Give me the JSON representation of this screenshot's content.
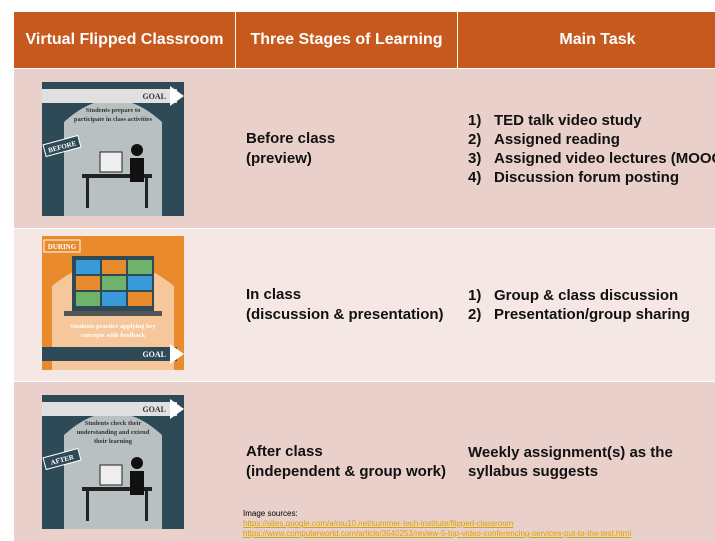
{
  "table": {
    "headers": [
      "Virtual Flipped Classroom",
      "Three Stages of Learning",
      "Main Task"
    ],
    "rows": [
      {
        "illustration": {
          "tag": "BEFORE",
          "goal": "GOAL",
          "caption": [
            "Students prepare to",
            "participate in class activities"
          ]
        },
        "stage": [
          "Before class",
          "(preview)"
        ],
        "tasks": [
          {
            "num": "1)",
            "text": "TED talk video study"
          },
          {
            "num": "2)",
            "text": "Assigned reading"
          },
          {
            "num": "3)",
            "text": "Assigned video lectures (MOOCs)"
          },
          {
            "num": "4)",
            "text": "Discussion forum posting"
          }
        ]
      },
      {
        "illustration": {
          "tag": "DURING",
          "goal": "GOAL",
          "caption": [
            "Students practice applying key",
            "concepts with feedback"
          ]
        },
        "stage": [
          "In class",
          "(discussion & presentation)"
        ],
        "tasks": [
          {
            "num": "1)",
            "text": "Group & class discussion"
          },
          {
            "num": "2)",
            "text": "Presentation/group sharing"
          }
        ]
      },
      {
        "illustration": {
          "tag": "AFTER",
          "goal": "GOAL",
          "caption": [
            "Students check their",
            "understanding and extend",
            "their learning"
          ]
        },
        "stage": [
          "After class",
          "(independent  & group work)"
        ],
        "tasks": [
          {
            "text": "Weekly assignment(s) as the syllabus suggests"
          }
        ]
      }
    ],
    "sources": {
      "label": "Image sources:",
      "links": [
        "https://sites.google.com/a/rsu10.net/summer-tech-institute/flipped-classroom",
        "https://www.computerworld.com/article/3540253/review-5-top-video-conferencing-services-put-to-the-test.html"
      ]
    }
  }
}
